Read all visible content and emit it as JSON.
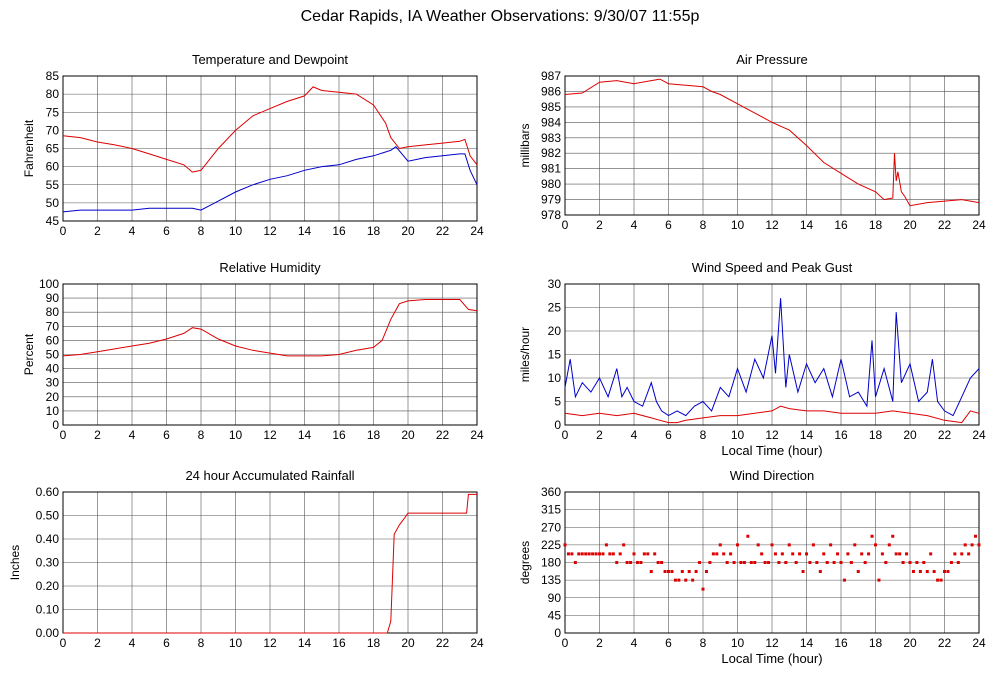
{
  "page": {
    "title": "Cedar Rapids, IA Weather Observations: 9/30/07 11:55p"
  },
  "colors": {
    "red": "#dd0000",
    "blue": "#0000cc",
    "grid": "#555555",
    "axis": "#000000"
  },
  "chart_data": [
    {
      "id": "temp",
      "type": "line",
      "title": "Temperature and Dewpoint",
      "xlabel": "",
      "ylabel": "Fahrenheit",
      "xlim": [
        0,
        24
      ],
      "ylim": [
        45,
        85
      ],
      "xticks": [
        0,
        2,
        4,
        6,
        8,
        10,
        12,
        14,
        16,
        18,
        20,
        22,
        24
      ],
      "yticks": [
        45,
        50,
        55,
        60,
        65,
        70,
        75,
        80,
        85
      ],
      "ytick_labels": [
        "45",
        "50",
        "55",
        "60",
        "65",
        "70",
        "75",
        "80",
        "85"
      ],
      "grid": true,
      "series": [
        {
          "color": "#dd0000",
          "x": [
            0,
            1,
            2,
            3,
            4,
            5,
            6,
            7,
            7.5,
            8,
            9,
            10,
            11,
            12,
            13,
            14,
            14.5,
            15,
            16,
            17,
            18,
            18.7,
            19,
            19.5,
            20,
            21,
            22,
            23,
            23.3,
            23.6,
            24
          ],
          "y": [
            68.5,
            68,
            66.8,
            66,
            65,
            63.5,
            62,
            60.5,
            58.5,
            59,
            65,
            70,
            74,
            76,
            78,
            79.5,
            82,
            81,
            80.5,
            80,
            77,
            72,
            68,
            65,
            65.5,
            66,
            66.5,
            67,
            67.5,
            63,
            60.5
          ]
        },
        {
          "color": "#0000cc",
          "x": [
            0,
            1,
            2,
            3,
            4,
            5,
            6,
            7,
            7.5,
            8,
            9,
            10,
            11,
            12,
            13,
            14,
            15,
            16,
            17,
            18,
            19,
            19.3,
            20,
            21,
            22,
            23,
            23.3,
            23.6,
            24
          ],
          "y": [
            47.5,
            48,
            48,
            48,
            48,
            48.5,
            48.5,
            48.5,
            48.5,
            48,
            50.5,
            53,
            55,
            56.5,
            57.5,
            59,
            60,
            60.5,
            62,
            63,
            64.5,
            65.5,
            61.5,
            62.5,
            63,
            63.5,
            63.5,
            59,
            55
          ]
        }
      ]
    },
    {
      "id": "pressure",
      "type": "line",
      "title": "Air Pressure",
      "xlabel": "",
      "ylabel": "millibars",
      "xlim": [
        0,
        24
      ],
      "ylim": [
        978,
        987
      ],
      "xticks": [
        0,
        2,
        4,
        6,
        8,
        10,
        12,
        14,
        16,
        18,
        20,
        22,
        24
      ],
      "yticks": [
        978,
        979,
        980,
        981,
        982,
        983,
        984,
        985,
        986,
        987
      ],
      "ytick_labels": [
        "978",
        "979",
        "980",
        "981",
        "982",
        "983",
        "984",
        "985",
        "986",
        "987"
      ],
      "grid": true,
      "series": [
        {
          "color": "#dd0000",
          "x": [
            0,
            1,
            2,
            3,
            4,
            5,
            5.5,
            6,
            7,
            8,
            8.5,
            9,
            10,
            11,
            12,
            13,
            14,
            15,
            16,
            17,
            18,
            18.5,
            19,
            19.1,
            19.2,
            19.3,
            19.5,
            19.7,
            20,
            21,
            22,
            23,
            24
          ],
          "y": [
            985.8,
            985.9,
            986.6,
            986.7,
            986.5,
            986.7,
            986.8,
            986.5,
            986.4,
            986.3,
            986,
            985.8,
            985.2,
            984.6,
            984,
            983.5,
            982.5,
            981.4,
            980.7,
            980,
            979.5,
            979,
            979.1,
            982,
            980.2,
            980.8,
            979.5,
            979.2,
            978.6,
            978.8,
            978.9,
            979,
            978.8
          ]
        }
      ]
    },
    {
      "id": "rh",
      "type": "line",
      "title": "Relative Humidity",
      "xlabel": "",
      "ylabel": "Percent",
      "xlim": [
        0,
        24
      ],
      "ylim": [
        0,
        100
      ],
      "xticks": [
        0,
        2,
        4,
        6,
        8,
        10,
        12,
        14,
        16,
        18,
        20,
        22,
        24
      ],
      "yticks": [
        0,
        10,
        20,
        30,
        40,
        50,
        60,
        70,
        80,
        90,
        100
      ],
      "ytick_labels": [
        "0",
        "10",
        "20",
        "30",
        "40",
        "50",
        "60",
        "70",
        "80",
        "90",
        "100"
      ],
      "grid": true,
      "series": [
        {
          "color": "#dd0000",
          "x": [
            0,
            1,
            2,
            3,
            4,
            5,
            6,
            7,
            7.5,
            8,
            9,
            10,
            11,
            12,
            13,
            14,
            15,
            16,
            17,
            18,
            18.5,
            19,
            19.5,
            20,
            21,
            22,
            23,
            23.5,
            24
          ],
          "y": [
            49,
            50,
            52,
            54,
            56,
            58,
            61,
            65,
            69,
            68,
            61,
            56,
            53,
            51,
            49,
            49,
            49,
            50,
            53,
            55,
            60,
            75,
            86,
            88,
            89,
            89,
            89,
            82,
            81
          ]
        }
      ]
    },
    {
      "id": "wind",
      "type": "line",
      "title": "Wind Speed and Peak Gust",
      "xlabel": "Local Time (hour)",
      "ylabel": "miles/hour",
      "xlim": [
        0,
        24
      ],
      "ylim": [
        0,
        30
      ],
      "xticks": [
        0,
        2,
        4,
        6,
        8,
        10,
        12,
        14,
        16,
        18,
        20,
        22,
        24
      ],
      "yticks": [
        0,
        5,
        10,
        15,
        20,
        25,
        30
      ],
      "ytick_labels": [
        "0",
        "5",
        "10",
        "15",
        "20",
        "25",
        "30"
      ],
      "grid": true,
      "series": [
        {
          "color": "#0000cc",
          "x": [
            0,
            0.3,
            0.6,
            1,
            1.5,
            2,
            2.5,
            3,
            3.3,
            3.6,
            4,
            4.5,
            5,
            5.3,
            5.6,
            6,
            6.5,
            7,
            7.5,
            8,
            8.5,
            9,
            9.5,
            10,
            10.5,
            11,
            11.5,
            12,
            12.2,
            12.5,
            12.8,
            13,
            13.5,
            14,
            14.5,
            15,
            15.5,
            16,
            16.5,
            17,
            17.5,
            17.8,
            18,
            18.5,
            19,
            19.2,
            19.5,
            20,
            20.5,
            21,
            21.3,
            21.6,
            22,
            22.5,
            23,
            23.5,
            24
          ],
          "y": [
            8,
            14,
            6,
            9,
            7,
            10,
            6,
            12,
            6,
            8,
            5,
            4,
            9,
            5,
            3,
            2,
            3,
            2,
            4,
            5,
            3,
            8,
            6,
            12,
            7,
            14,
            10,
            19,
            11,
            27,
            8,
            15,
            7,
            13,
            9,
            12,
            6,
            14,
            6,
            7,
            4,
            18,
            6,
            12,
            5,
            24,
            9,
            13,
            5,
            7,
            14,
            5,
            3,
            2,
            6,
            10,
            12
          ]
        },
        {
          "color": "#dd0000",
          "x": [
            0,
            1,
            2,
            3,
            4,
            5,
            5.5,
            6,
            6.5,
            7,
            8,
            9,
            10,
            11,
            12,
            12.5,
            13,
            14,
            15,
            16,
            17,
            18,
            19,
            20,
            21,
            22,
            23,
            23.5,
            24
          ],
          "y": [
            2.5,
            2,
            2.5,
            2,
            2.5,
            1.5,
            1,
            0.5,
            0.5,
            1,
            1.5,
            2,
            2,
            2.5,
            3,
            4,
            3.5,
            3,
            3,
            2.5,
            2.5,
            2.5,
            3,
            2.5,
            2,
            1,
            0.5,
            3,
            2.5
          ]
        }
      ]
    },
    {
      "id": "rain",
      "type": "line",
      "title": "24 hour Accumulated Rainfall",
      "xlabel": "",
      "ylabel": "Inches",
      "xlim": [
        0,
        24
      ],
      "ylim": [
        0,
        0.6
      ],
      "xticks": [
        0,
        2,
        4,
        6,
        8,
        10,
        12,
        14,
        16,
        18,
        20,
        22,
        24
      ],
      "yticks": [
        0,
        0.1,
        0.2,
        0.3,
        0.4,
        0.5,
        0.6
      ],
      "ytick_labels": [
        "0.00",
        "0.10",
        "0.20",
        "0.30",
        "0.40",
        "0.50",
        "0.60"
      ],
      "grid": true,
      "series": [
        {
          "color": "#dd0000",
          "x": [
            0,
            18.8,
            19,
            19.2,
            19.5,
            19.8,
            20,
            21,
            22,
            23,
            23.4,
            23.5,
            24
          ],
          "y": [
            0,
            0,
            0.05,
            0.42,
            0.46,
            0.49,
            0.51,
            0.51,
            0.51,
            0.51,
            0.51,
            0.59,
            0.59
          ]
        }
      ]
    },
    {
      "id": "dir",
      "type": "scatter",
      "title": "Wind Direction",
      "xlabel": "Local Time (hour)",
      "ylabel": "degrees",
      "xlim": [
        0,
        24
      ],
      "ylim": [
        0,
        360
      ],
      "xticks": [
        0,
        2,
        4,
        6,
        8,
        10,
        12,
        14,
        16,
        18,
        20,
        22,
        24
      ],
      "yticks": [
        0,
        45,
        90,
        135,
        180,
        225,
        270,
        315,
        360
      ],
      "ytick_labels": [
        "0",
        "45",
        "90",
        "135",
        "180",
        "225",
        "270",
        "315",
        "360"
      ],
      "grid": true,
      "series": [
        {
          "color": "#dd0000",
          "x": [
            0,
            0.2,
            0.4,
            0.6,
            0.8,
            1,
            1.2,
            1.4,
            1.6,
            1.8,
            2,
            2.2,
            2.4,
            2.6,
            2.8,
            3,
            3.2,
            3.4,
            3.6,
            3.8,
            4,
            4.2,
            4.4,
            4.6,
            4.8,
            5,
            5.2,
            5.4,
            5.6,
            5.8,
            6,
            6.2,
            6.4,
            6.6,
            6.8,
            7,
            7.2,
            7.4,
            7.6,
            7.8,
            8,
            8.2,
            8.4,
            8.6,
            8.8,
            9,
            9.2,
            9.4,
            9.6,
            9.8,
            10,
            10.2,
            10.4,
            10.6,
            10.8,
            11,
            11.2,
            11.4,
            11.6,
            11.8,
            12,
            12.2,
            12.4,
            12.6,
            12.8,
            13,
            13.2,
            13.4,
            13.6,
            13.8,
            14,
            14.2,
            14.4,
            14.6,
            14.8,
            15,
            15.2,
            15.4,
            15.6,
            15.8,
            16,
            16.2,
            16.4,
            16.6,
            16.8,
            17,
            17.2,
            17.4,
            17.6,
            17.8,
            18,
            18.2,
            18.4,
            18.6,
            18.8,
            19,
            19.2,
            19.4,
            19.6,
            19.8,
            20,
            20.2,
            20.4,
            20.6,
            20.8,
            21,
            21.2,
            21.4,
            21.6,
            21.8,
            22,
            22.2,
            22.4,
            22.6,
            22.8,
            23,
            23.2,
            23.4,
            23.6,
            23.8,
            24
          ],
          "y": [
            225,
            202,
            202,
            180,
            202,
            202,
            202,
            202,
            202,
            202,
            202,
            202,
            225,
            202,
            202,
            180,
            202,
            225,
            180,
            180,
            202,
            180,
            180,
            202,
            202,
            157,
            202,
            180,
            180,
            157,
            157,
            157,
            135,
            135,
            157,
            135,
            157,
            135,
            157,
            180,
            112,
            157,
            180,
            202,
            202,
            225,
            202,
            180,
            202,
            180,
            225,
            180,
            180,
            247,
            180,
            180,
            225,
            202,
            180,
            180,
            225,
            202,
            180,
            202,
            180,
            225,
            202,
            180,
            202,
            157,
            202,
            180,
            225,
            180,
            157,
            202,
            180,
            225,
            180,
            202,
            180,
            135,
            202,
            180,
            225,
            157,
            202,
            180,
            202,
            247,
            225,
            135,
            202,
            180,
            225,
            247,
            202,
            202,
            180,
            202,
            180,
            157,
            180,
            157,
            180,
            157,
            202,
            157,
            135,
            135,
            157,
            157,
            180,
            202,
            180,
            202,
            225,
            202,
            225,
            247,
            225
          ]
        }
      ]
    }
  ]
}
